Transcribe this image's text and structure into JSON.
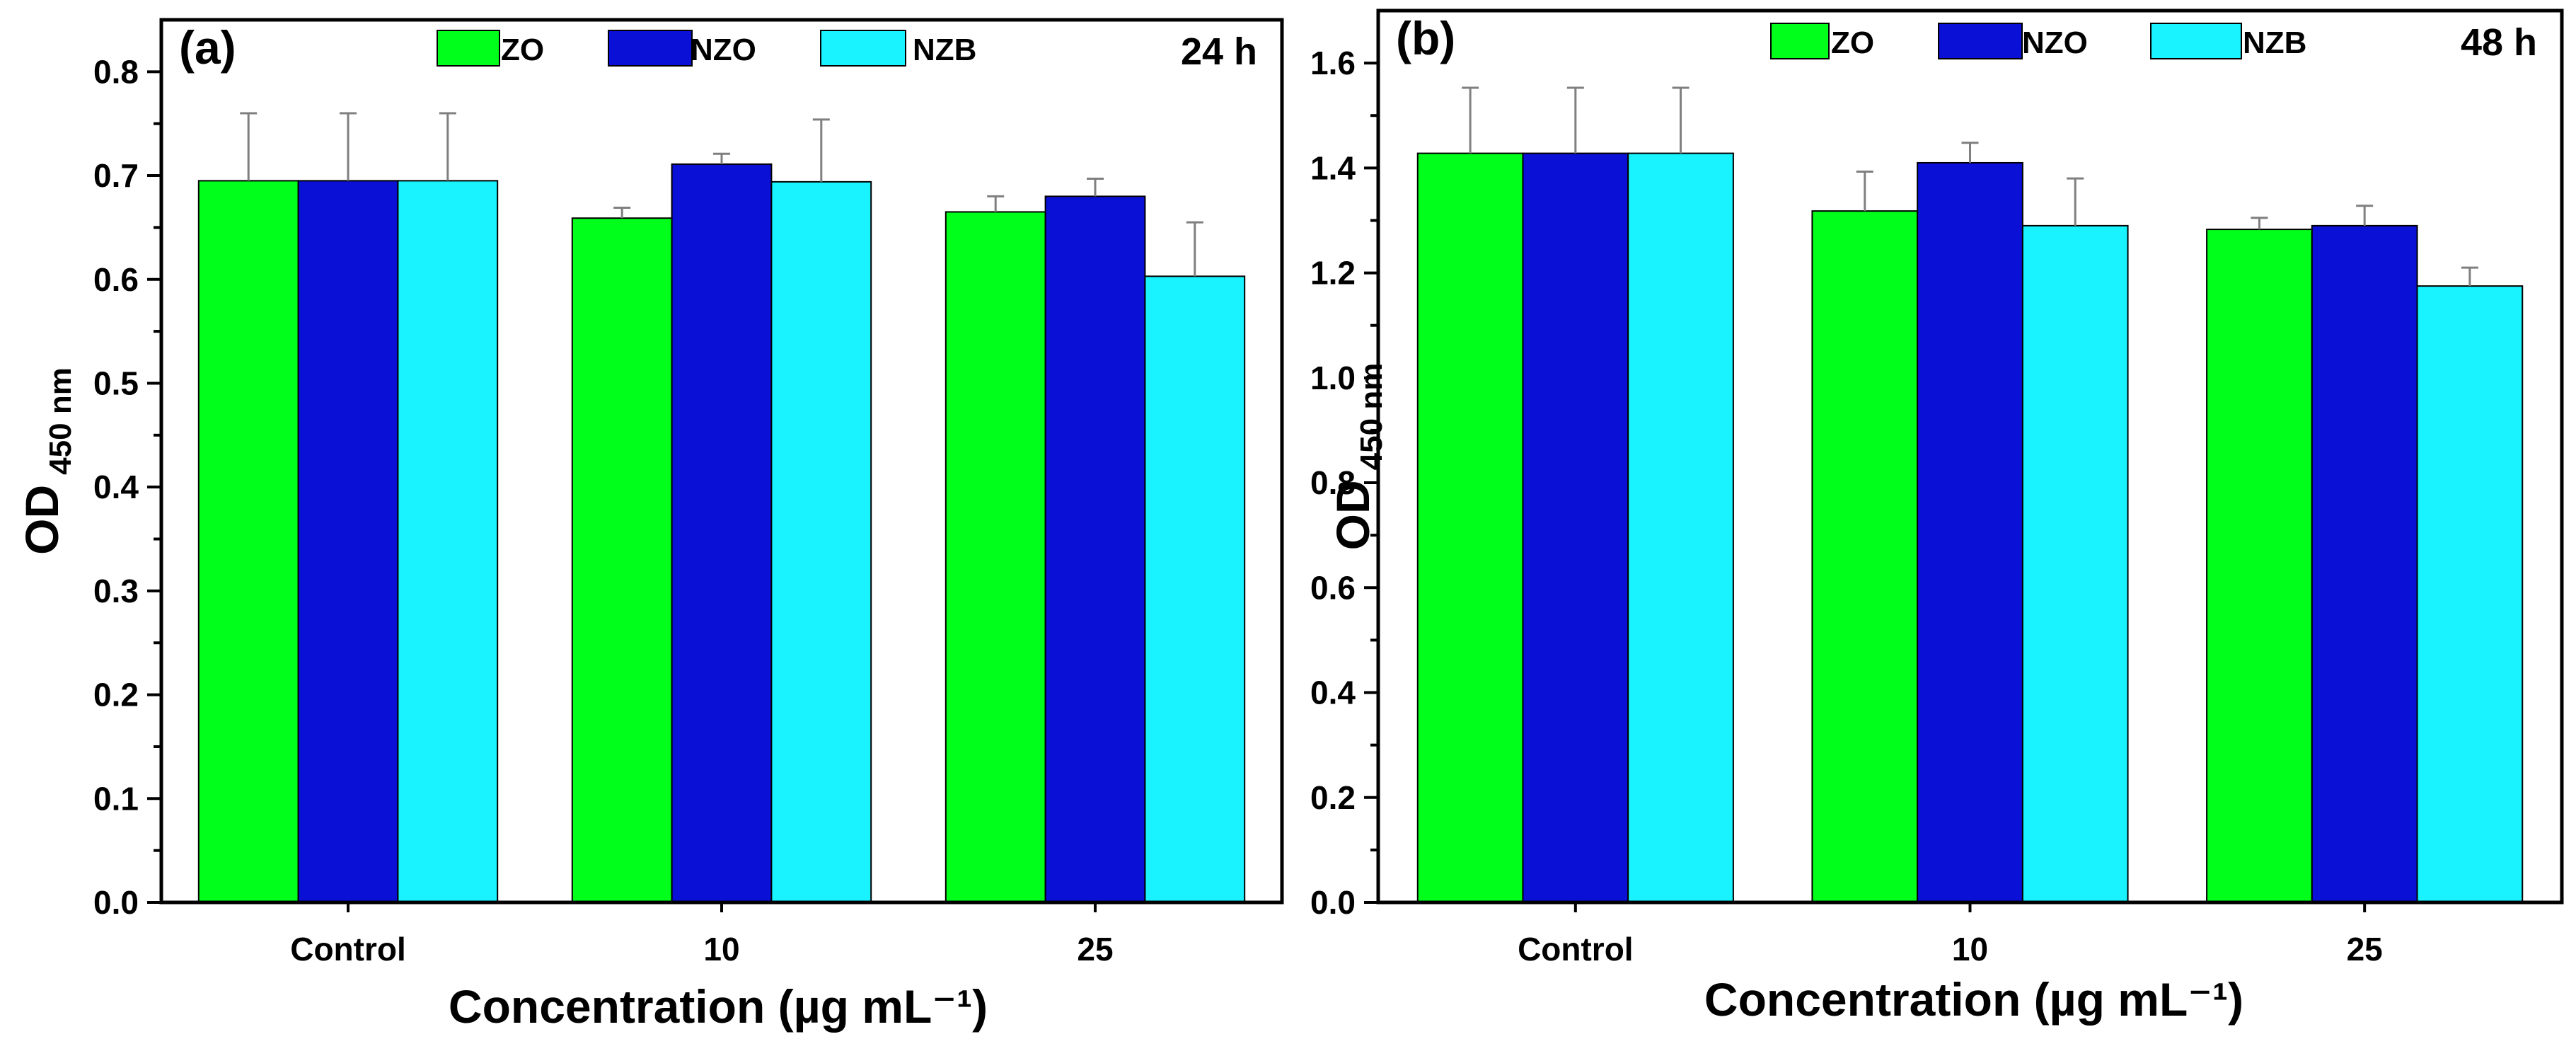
{
  "chart_data": [
    {
      "type": "bar",
      "panel_label": "(a)",
      "time_label": "24 h",
      "categories": [
        "Control",
        "10",
        "25"
      ],
      "series": [
        {
          "name": "ZO",
          "values": [
            0.695,
            0.659,
            0.665
          ],
          "errors": [
            0.065,
            0.01,
            0.015
          ]
        },
        {
          "name": "NZO",
          "values": [
            0.695,
            0.711,
            0.68
          ],
          "errors": [
            0.065,
            0.01,
            0.017
          ]
        },
        {
          "name": "NZB",
          "values": [
            0.695,
            0.694,
            0.603
          ],
          "errors": [
            0.065,
            0.06,
            0.052
          ]
        }
      ],
      "xlabel": "Concentration (µg mL⁻¹)",
      "ylabel_main": "OD",
      "ylabel_sub": "450 nm",
      "ylim": [
        0,
        0.85
      ],
      "yticks": [
        "0.0",
        "0.1",
        "0.2",
        "0.3",
        "0.4",
        "0.5",
        "0.6",
        "0.7",
        "0.8"
      ],
      "legend_position": "top-center"
    },
    {
      "type": "bar",
      "panel_label": "(b)",
      "time_label": "48 h",
      "categories": [
        "Control",
        "10",
        "25"
      ],
      "series": [
        {
          "name": "ZO",
          "values": [
            1.428,
            1.318,
            1.283
          ],
          "errors": [
            0.125,
            0.075,
            0.022
          ]
        },
        {
          "name": "NZO",
          "values": [
            1.428,
            1.41,
            1.29
          ],
          "errors": [
            0.125,
            0.038,
            0.038
          ]
        },
        {
          "name": "NZB",
          "values": [
            1.428,
            1.29,
            1.175
          ],
          "errors": [
            0.125,
            0.09,
            0.035
          ]
        }
      ],
      "xlabel": "Concentration (µg mL⁻¹)",
      "ylabel_main": "OD",
      "ylabel_sub": "450 nm",
      "ylim": [
        0,
        1.7
      ],
      "yticks": [
        "0.0",
        "0.2",
        "0.4",
        "0.6",
        "0.8",
        "1.0",
        "1.2",
        "1.4",
        "1.6"
      ],
      "legend_position": "top-center"
    }
  ],
  "colors": {
    "ZO": "#00ff1a",
    "NZO": "#0a10d6",
    "NZB": "#19f2ff",
    "axis": "#000000",
    "error_bar": "#7f7f7f"
  }
}
